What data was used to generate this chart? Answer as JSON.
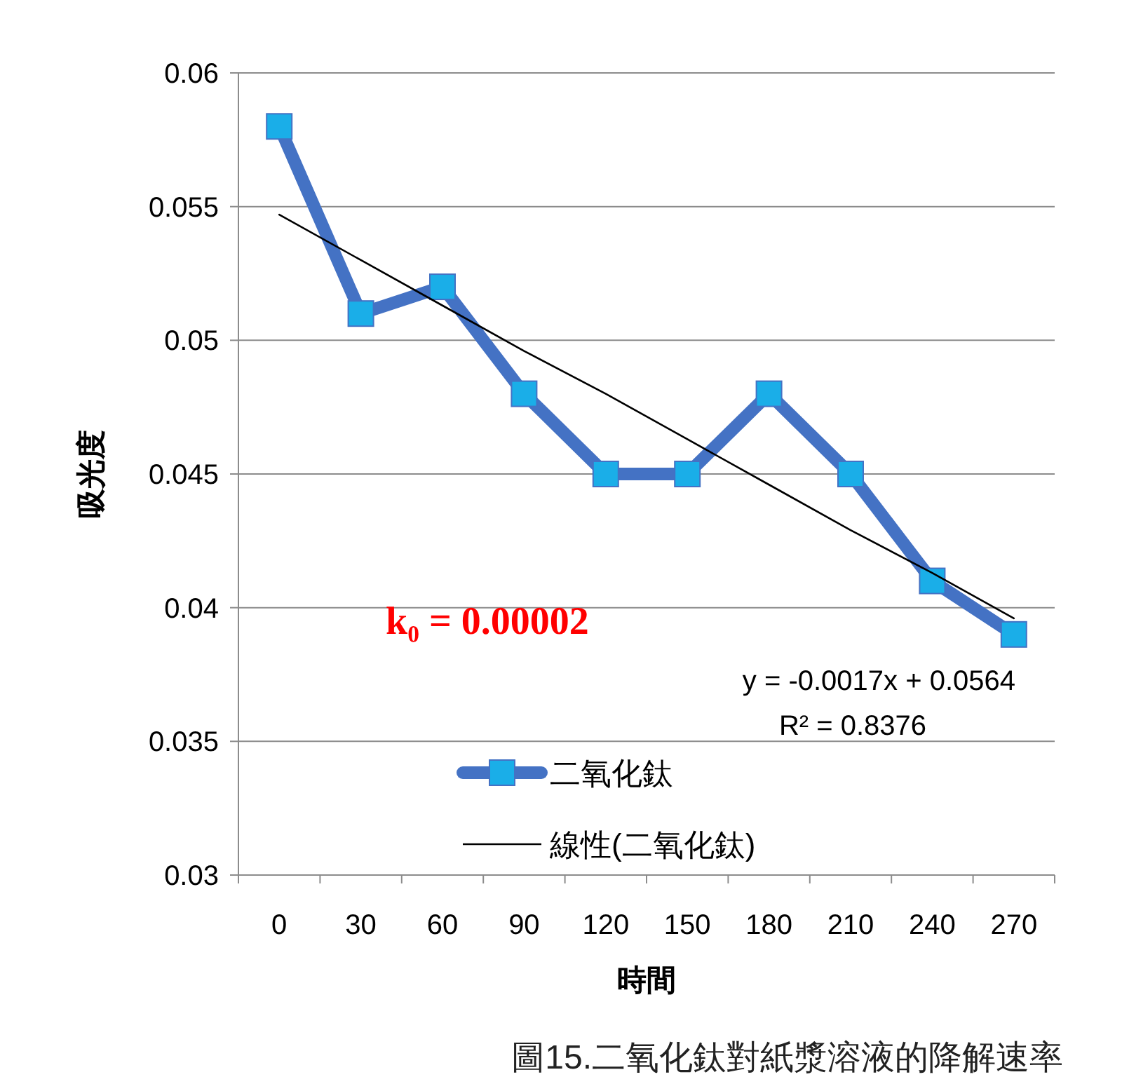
{
  "chart_data": {
    "type": "line",
    "xlabel": "時間",
    "ylabel": "吸光度",
    "categories": [
      "0",
      "30",
      "60",
      "90",
      "120",
      "150",
      "180",
      "210",
      "240",
      "270"
    ],
    "series": [
      {
        "name": "二氧化鈦",
        "color": "#4472c4",
        "marker": "square",
        "values": [
          0.058,
          0.051,
          0.052,
          0.048,
          0.045,
          0.045,
          0.048,
          0.045,
          0.041,
          0.039
        ]
      },
      {
        "name": "線性(二氧化鈦)",
        "color": "#000000",
        "marker": "none",
        "values": [
          0.0547,
          0.053,
          0.0513,
          0.0496,
          0.048,
          0.0463,
          0.0446,
          0.0429,
          0.0413,
          0.0396
        ]
      }
    ],
    "ylim": [
      0.03,
      0.06
    ],
    "yticks": [
      0.03,
      0.035,
      0.04,
      0.045,
      0.05,
      0.055,
      0.06
    ],
    "grid": "y",
    "legend": "bottom",
    "annotations": [
      "k₀ = 0.00002",
      "y = -0.0017x + 0.0564",
      "R² = 0.8376",
      "圖15.二氧化鈦對紙漿溶液的降解速率"
    ]
  }
}
